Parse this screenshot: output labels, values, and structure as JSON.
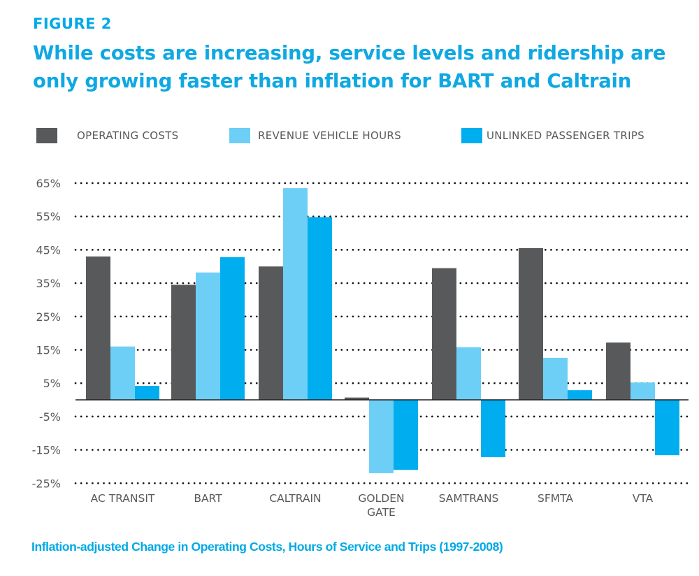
{
  "header": {
    "figure_label": "FIGURE 2",
    "title": "While costs are increasing, service levels and ridership are only growing faster than inflation for BART and Caltrain"
  },
  "footer": {
    "caption": "Inflation-adjusted Change in Operating Costs, Hours of Service and Trips (1997-2008)"
  },
  "chart_data": {
    "type": "bar",
    "title": "While costs are increasing, service levels and ridership are only growing faster than inflation for BART and Caltrain",
    "subtitle": "FIGURE 2",
    "caption": "Inflation-adjusted Change in Operating Costs, Hours of Service and Trips (1997-2008)",
    "xlabel": "",
    "ylabel": "",
    "categories": [
      "AC TRANSIT",
      "BART",
      "CALTRAIN",
      "GOLDEN GATE",
      "SAMTRANS",
      "SFMTA",
      "VTA"
    ],
    "category_lines": [
      [
        "AC TRANSIT"
      ],
      [
        "BART"
      ],
      [
        "CALTRAIN"
      ],
      [
        "GOLDEN",
        "GATE"
      ],
      [
        "SAMTRANS"
      ],
      [
        "SFMTA"
      ],
      [
        "VTA"
      ]
    ],
    "series": [
      {
        "name": "OPERATING COSTS",
        "color": "#58595b",
        "values": [
          43,
          34.5,
          40,
          0.7,
          39.5,
          45.5,
          17.2
        ]
      },
      {
        "name": "REVENUE VEHICLE HOURS",
        "color": "#6dcff6",
        "values": [
          16,
          38.2,
          63.5,
          -22,
          15.8,
          12.6,
          5.2
        ]
      },
      {
        "name": "UNLINKED PASSENGER TRIPS",
        "color": "#00aeef",
        "values": [
          4.2,
          42.8,
          54.8,
          -21,
          -17.2,
          2.9,
          -16.6
        ]
      }
    ],
    "yticks": [
      65,
      55,
      45,
      35,
      25,
      15,
      5,
      -5,
      -15,
      -25
    ],
    "ytick_labels": [
      "65%",
      "55%",
      "45%",
      "35%",
      "25%",
      "15%",
      "5%",
      "-5%",
      "-15%",
      "-25%"
    ],
    "ylim": [
      -25,
      65
    ],
    "grid": true,
    "grid_style": "dotted",
    "legend_position": "top"
  }
}
